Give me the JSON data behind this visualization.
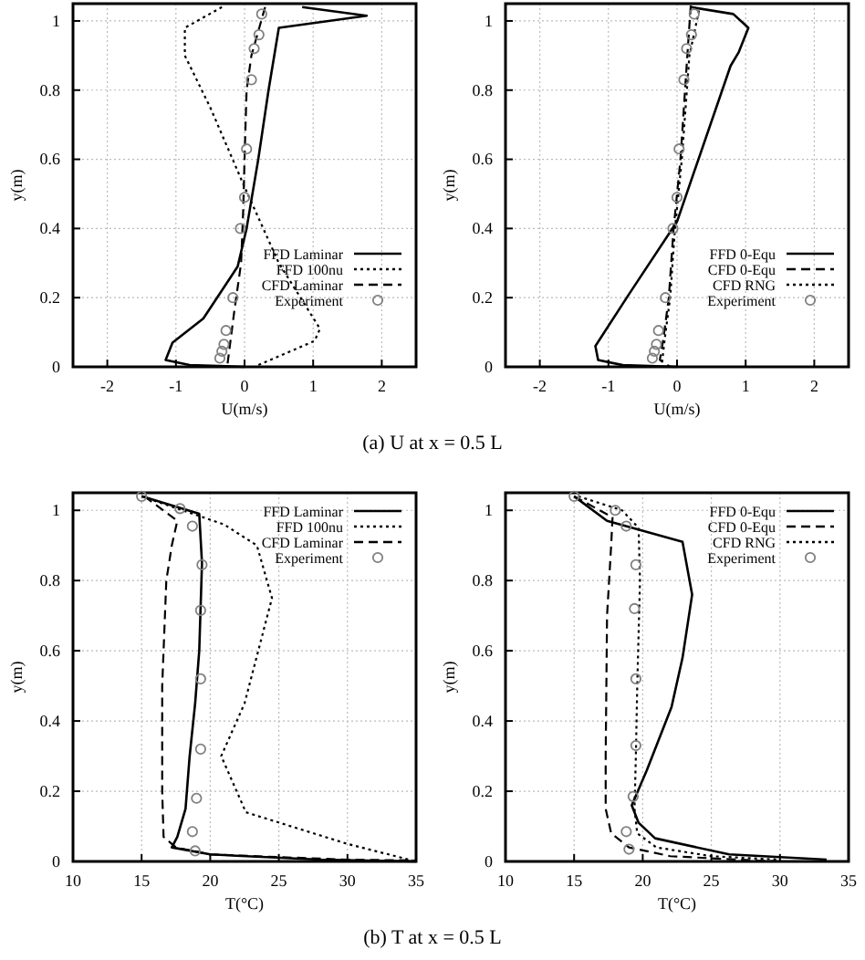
{
  "chart_data": [
    {
      "type": "line",
      "xlabel": "U(m/s)",
      "ylabel": "y(m)",
      "xlim": [
        -2.5,
        2.5
      ],
      "xticks": [
        -2,
        -1,
        0,
        1,
        2
      ],
      "ylim": [
        0,
        1.05
      ],
      "yticks": [
        0,
        0.2,
        0.4,
        0.6,
        0.8,
        1
      ],
      "grid": true,
      "legend": "bottom right",
      "annotations": [
        "(a)  U at x = 0.5 L"
      ],
      "series": [
        {
          "name": "FFD Laminar",
          "line_style": "solid",
          "color": "#000000",
          "x": [
            0.84,
            1.78,
            0.5,
            0.35,
            0.2,
            0.03,
            -0.1,
            -0.6,
            -1.05,
            -1.15,
            -0.8,
            0
          ],
          "values": [
            1.04,
            1.015,
            0.98,
            0.8,
            0.6,
            0.4,
            0.29,
            0.14,
            0.07,
            0.02,
            0.005,
            0
          ]
        },
        {
          "name": "FFD 100nu",
          "line_style": "dotted",
          "color": "#000000",
          "x": [
            -0.33,
            -0.87,
            -0.87,
            -0.5,
            0,
            0.5,
            1.1,
            1.02,
            0.2
          ],
          "values": [
            1.04,
            0.98,
            0.9,
            0.75,
            0.52,
            0.3,
            0.11,
            0.075,
            0.005
          ]
        },
        {
          "name": "CFD Laminar",
          "line_style": "dashed",
          "color": "#000000",
          "x": [
            0.3,
            0.1,
            0.03,
            0,
            -0.02,
            -0.05,
            -0.15,
            -0.25
          ],
          "values": [
            1.04,
            0.9,
            0.8,
            0.6,
            0.45,
            0.3,
            0.16,
            0.005
          ]
        },
        {
          "name": "Experiment",
          "type": "scatter",
          "marker": "circle",
          "color": "#808080",
          "x": [
            0.25,
            0.21,
            0.14,
            0.1,
            0.03,
            0,
            -0.06,
            -0.17,
            -0.27,
            -0.3,
            -0.33,
            -0.36
          ],
          "values": [
            1.02,
            0.96,
            0.92,
            0.83,
            0.63,
            0.49,
            0.4,
            0.2,
            0.105,
            0.065,
            0.045,
            0.025
          ]
        }
      ]
    },
    {
      "type": "line",
      "xlabel": "U(m/s)",
      "ylabel": "y(m)",
      "xlim": [
        -2.5,
        2.5
      ],
      "xticks": [
        -2,
        -1,
        0,
        1,
        2
      ],
      "ylim": [
        0,
        1.05
      ],
      "yticks": [
        0,
        0.2,
        0.4,
        0.6,
        0.8,
        1
      ],
      "grid": true,
      "legend": "bottom right",
      "series": [
        {
          "name": "FFD 0-Equ",
          "line_style": "solid",
          "color": "#000000",
          "x": [
            0.2,
            0.82,
            1.04,
            0.9,
            0.78,
            0,
            -0.7,
            -1.19,
            -1.15,
            -0.79,
            0
          ],
          "values": [
            1.04,
            1.02,
            0.98,
            0.91,
            0.87,
            0.42,
            0.21,
            0.06,
            0.02,
            0.005,
            0
          ]
        },
        {
          "name": "CFD 0-Equ",
          "line_style": "dashed",
          "color": "#000000",
          "x": [
            0.2,
            0.15,
            0.05,
            -0.05,
            -0.12,
            -0.2,
            -0.25,
            -0.1
          ],
          "values": [
            1.045,
            0.9,
            0.6,
            0.4,
            0.2,
            0.08,
            0.02,
            0
          ]
        },
        {
          "name": "CFD RNG",
          "line_style": "dotted",
          "color": "#000000",
          "x": [
            0.32,
            0.18,
            0.07,
            -0.03,
            -0.1,
            -0.18,
            -0.22
          ],
          "values": [
            1.03,
            0.9,
            0.6,
            0.4,
            0.2,
            0.08,
            0.01
          ]
        },
        {
          "name": "Experiment",
          "type": "scatter",
          "marker": "circle",
          "color": "#808080",
          "x": [
            0.25,
            0.21,
            0.14,
            0.1,
            0.03,
            0,
            -0.06,
            -0.17,
            -0.27,
            -0.3,
            -0.33,
            -0.36
          ],
          "values": [
            1.02,
            0.96,
            0.92,
            0.83,
            0.63,
            0.49,
            0.4,
            0.2,
            0.105,
            0.065,
            0.045,
            0.025
          ]
        }
      ]
    },
    {
      "type": "line",
      "xlabel": "T(°C)",
      "ylabel": "y(m)",
      "xlim": [
        10,
        35
      ],
      "xticks": [
        10,
        15,
        20,
        25,
        30,
        35
      ],
      "ylim": [
        0,
        1.05
      ],
      "yticks": [
        0,
        0.2,
        0.4,
        0.6,
        0.8,
        1
      ],
      "grid": true,
      "legend": "top right",
      "annotations": [
        "(b) T at x = 0.5 L"
      ],
      "series": [
        {
          "name": "FFD Laminar",
          "line_style": "solid",
          "color": "#000000",
          "x": [
            15,
            19.2,
            19.4,
            19.2,
            18.9,
            18.5,
            18.2,
            17.6,
            17.2,
            20,
            28,
            35
          ],
          "values": [
            1.04,
            0.99,
            0.85,
            0.6,
            0.45,
            0.3,
            0.15,
            0.07,
            0.04,
            0.02,
            0.005,
            0
          ]
        },
        {
          "name": "FFD 100nu",
          "line_style": "dotted",
          "color": "#000000",
          "x": [
            15,
            18,
            21,
            23.4,
            24.5,
            22.5,
            20.8,
            22.6,
            30,
            35
          ],
          "values": [
            1.04,
            1,
            0.96,
            0.9,
            0.75,
            0.45,
            0.3,
            0.14,
            0.05,
            0
          ]
        },
        {
          "name": "CFD Laminar",
          "line_style": "dashed",
          "color": "#000000",
          "x": [
            15.2,
            17.6,
            17.2,
            16.8,
            16.5,
            16.5,
            16.6,
            17.5,
            20,
            30,
            35
          ],
          "values": [
            1.04,
            0.97,
            0.9,
            0.8,
            0.5,
            0.2,
            0.07,
            0.04,
            0.02,
            0.005,
            0.003
          ]
        },
        {
          "name": "Experiment",
          "type": "scatter",
          "marker": "circle",
          "color": "#808080",
          "x": [
            15,
            17.8,
            18.7,
            19.4,
            19.3,
            19.3,
            19.3,
            19,
            18.7,
            18.9
          ],
          "values": [
            1.04,
            1.005,
            0.955,
            0.845,
            0.715,
            0.52,
            0.32,
            0.18,
            0.085,
            0.03
          ]
        }
      ]
    },
    {
      "type": "line",
      "xlabel": "T(°C)",
      "ylabel": "y(m)",
      "xlim": [
        10,
        35
      ],
      "xticks": [
        10,
        15,
        20,
        25,
        30,
        35
      ],
      "ylim": [
        0,
        1.05
      ],
      "yticks": [
        0,
        0.2,
        0.4,
        0.6,
        0.8,
        1
      ],
      "grid": true,
      "legend": "top right",
      "series": [
        {
          "name": "FFD 0-Equ",
          "line_style": "solid",
          "color": "#000000",
          "x": [
            15,
            17.4,
            22.9,
            23.6,
            22.9,
            22.1,
            20.3,
            19.2,
            19.7,
            20.9,
            26.3,
            33.4
          ],
          "values": [
            1.04,
            0.97,
            0.91,
            0.76,
            0.58,
            0.44,
            0.26,
            0.16,
            0.11,
            0.066,
            0.02,
            0.005
          ]
        },
        {
          "name": "CFD 0-Equ",
          "line_style": "dashed",
          "color": "#000000",
          "x": [
            15,
            17.8,
            17.7,
            17.4,
            17.3,
            17.3,
            17.7,
            19,
            22,
            28,
            30
          ],
          "values": [
            1.04,
            0.98,
            0.9,
            0.7,
            0.3,
            0.15,
            0.08,
            0.04,
            0.015,
            0.003,
            0
          ]
        },
        {
          "name": "CFD RNG",
          "line_style": "dotted",
          "color": "#000000",
          "x": [
            15.3,
            18.5,
            19.7,
            19.8,
            19.6,
            19.5,
            19.4,
            19.6,
            21,
            25,
            30
          ],
          "values": [
            1.04,
            1,
            0.95,
            0.8,
            0.5,
            0.3,
            0.15,
            0.08,
            0.04,
            0.015,
            0.005
          ]
        },
        {
          "name": "Experiment",
          "type": "scatter",
          "marker": "circle",
          "color": "#808080",
          "x": [
            15,
            18,
            18.8,
            19.5,
            19.4,
            19.5,
            19.5,
            19.3,
            18.8,
            19
          ],
          "values": [
            1.04,
            1,
            0.955,
            0.845,
            0.72,
            0.52,
            0.33,
            0.185,
            0.085,
            0.035
          ]
        }
      ]
    }
  ]
}
